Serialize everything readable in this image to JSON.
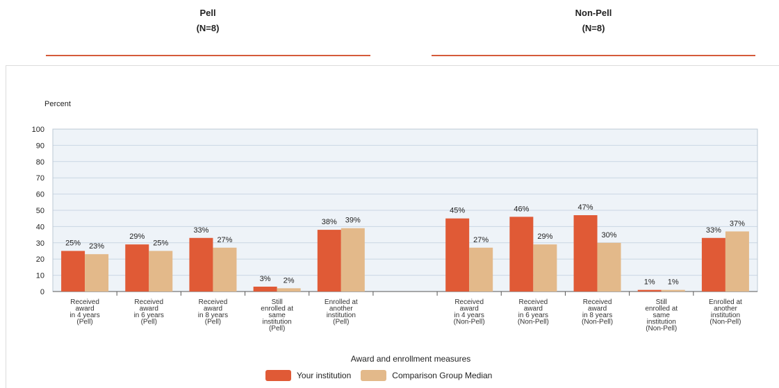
{
  "header": {
    "pell_title": "Pell",
    "pell_n": "(N=8)",
    "nonpell_title": "Non-Pell",
    "nonpell_n": "(N=8)"
  },
  "colors": {
    "institution": "#e05a36",
    "comparison": "#e3b98a",
    "divider": "#d55a3a",
    "plot_bg": "#eef3f8",
    "grid": "#c9d6e3"
  },
  "chart_data": {
    "type": "bar",
    "ylabel": "Percent",
    "xlabel": "Award and enrollment measures",
    "ylim": [
      0,
      100
    ],
    "yticks": [
      0,
      10,
      20,
      30,
      40,
      50,
      60,
      70,
      80,
      90,
      100
    ],
    "grid": true,
    "legend_position": "bottom",
    "categories": [
      [
        "Received",
        "award",
        "in 4 years",
        "(Pell)"
      ],
      [
        "Received",
        "award",
        "in 6 years",
        "(Pell)"
      ],
      [
        "Received",
        "award",
        "in 8 years",
        "(Pell)"
      ],
      [
        "Still",
        "enrolled at",
        "same",
        "institution",
        "(Pell)"
      ],
      [
        "Enrolled at",
        "another",
        "institution",
        "(Pell)"
      ],
      [],
      [
        "Received",
        "award",
        "in 4 years",
        "(Non-Pell)"
      ],
      [
        "Received",
        "award",
        "in 6 years",
        "(Non-Pell)"
      ],
      [
        "Received",
        "award",
        "in 8 years",
        "(Non-Pell)"
      ],
      [
        "Still",
        "enrolled at",
        "same",
        "institution",
        "(Non-Pell)"
      ],
      [
        "Enrolled at",
        "another",
        "institution",
        "(Non-Pell)"
      ]
    ],
    "series": [
      {
        "name": "Your institution",
        "values": [
          25,
          29,
          33,
          3,
          38,
          null,
          45,
          46,
          47,
          1,
          33
        ]
      },
      {
        "name": "Comparison Group Median",
        "values": [
          23,
          25,
          27,
          2,
          39,
          null,
          27,
          29,
          30,
          1,
          37
        ]
      }
    ],
    "value_suffix": "%"
  }
}
